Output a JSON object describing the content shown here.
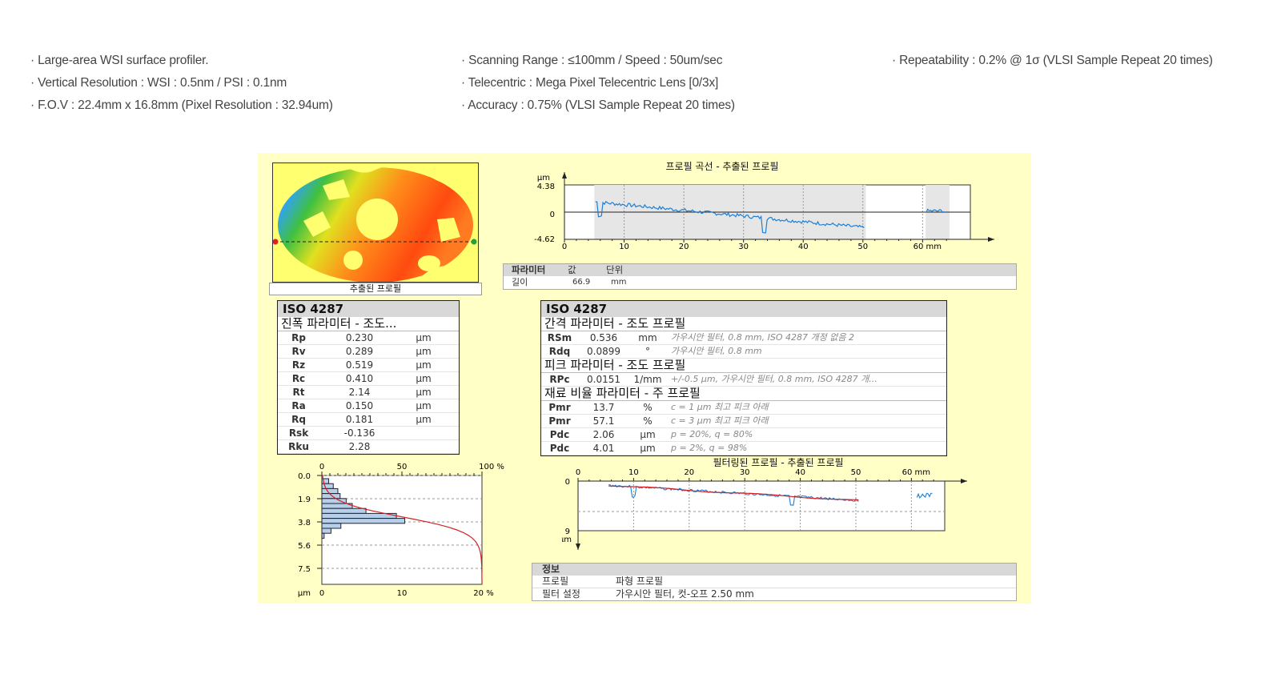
{
  "specs": {
    "col1": [
      "· Large-area WSI surface profiler.",
      "· Vertical Resolution : WSI : 0.5nm / PSI : 0.1nm",
      "· F.O.V : 22.4mm x 16.8mm (Pixel Resolution : 32.94um)"
    ],
    "col2": [
      "· Scanning Range : ≤100mm / Speed : 50um/sec",
      "· Telecentric : Mega Pixel Telecentric Lens [0/3x]",
      "· Accuracy : 0.75% (VLSI Sample Repeat 20 times)"
    ],
    "col3": [
      "· Repeatability : 0.2% @ 1σ (VLSI Sample Repeat 20 times)"
    ]
  },
  "surface_image": {
    "caption": "추출된 프로필"
  },
  "profile_chart": {
    "title": "프로필 곡선 - 추출된 프로필",
    "y_unit": "µm",
    "y_ticks": [
      "4.38",
      "0",
      "-4.62"
    ],
    "x_ticks": [
      "0",
      "10",
      "20",
      "30",
      "40",
      "50",
      "60 mm"
    ],
    "colors": {
      "line": "#1e7fd6",
      "fill": "#e6e6e6"
    }
  },
  "length_table": {
    "headers": [
      "파라미터",
      "값",
      "단위"
    ],
    "rows": [
      [
        "길이",
        "66.9",
        "mm"
      ]
    ]
  },
  "iso_left": {
    "title": "ISO 4287",
    "section": "진폭 파라미터 - 조도...",
    "rows": [
      [
        "Rp",
        "0.230",
        "µm"
      ],
      [
        "Rv",
        "0.289",
        "µm"
      ],
      [
        "Rz",
        "0.519",
        "µm"
      ],
      [
        "Rc",
        "0.410",
        "µm"
      ],
      [
        "Rt",
        "2.14",
        "µm"
      ],
      [
        "Ra",
        "0.150",
        "µm"
      ],
      [
        "Rq",
        "0.181",
        "µm"
      ],
      [
        "Rsk",
        "-0.136",
        ""
      ],
      [
        "Rku",
        "2.28",
        ""
      ]
    ]
  },
  "iso_right": {
    "title": "ISO 4287",
    "sections": [
      {
        "title": "간격 파라미터 - 조도 프로필",
        "rows": [
          [
            "RSm",
            "0.536",
            "mm",
            "가우시안 필터, 0.8 mm, ISO 4287 개정 없음 2"
          ],
          [
            "Rdq",
            "0.0899",
            "°",
            "가우시안 필터, 0.8 mm"
          ]
        ]
      },
      {
        "title": "피크 파라미터 - 조도 프로필",
        "rows": [
          [
            "RPc",
            "0.0151",
            "1/mm",
            "+/-0.5 µm, 가우시안 필터, 0.8 mm, ISO 4287 개..."
          ]
        ]
      },
      {
        "title": "재료 비율 파라미터 - 주 프로필",
        "rows": [
          [
            "Pmr",
            "13.7",
            "%",
            "c = 1 µm 최고 피크 아래"
          ],
          [
            "Pmr",
            "57.1",
            "%",
            "c = 3 µm 최고 피크 아래"
          ],
          [
            "Pdc",
            "2.06",
            "µm",
            "p = 20%, q = 80%"
          ],
          [
            "Pdc",
            "4.01",
            "µm",
            "p = 2%, q = 98%"
          ]
        ]
      }
    ]
  },
  "histogram": {
    "top_ticks": [
      "0",
      "50",
      "100 %"
    ],
    "bottom_ticks": [
      "0",
      "10",
      "20 %"
    ],
    "y_ticks": [
      "0.0",
      "1.9",
      "3.8",
      "5.6",
      "7.5"
    ],
    "y_unit": "µm",
    "colors": {
      "bar": "#b8cfea",
      "curve": "#d62020"
    }
  },
  "filtered_chart": {
    "title": "필터링된 프로필 - 추출된 프로필",
    "x_ticks": [
      "0",
      "10",
      "20",
      "30",
      "40",
      "50",
      "60 mm"
    ],
    "y_ticks": [
      "0",
      "9"
    ],
    "y_unit": "µm",
    "colors": {
      "raw": "#1e7fd6",
      "filtered": "#d62020"
    }
  },
  "info_table": {
    "title": "정보",
    "rows": [
      [
        "프로필",
        "파형 프로필"
      ],
      [
        "필터 설정",
        "가우시안 필터, 컷-오프 2.50 mm"
      ]
    ]
  }
}
